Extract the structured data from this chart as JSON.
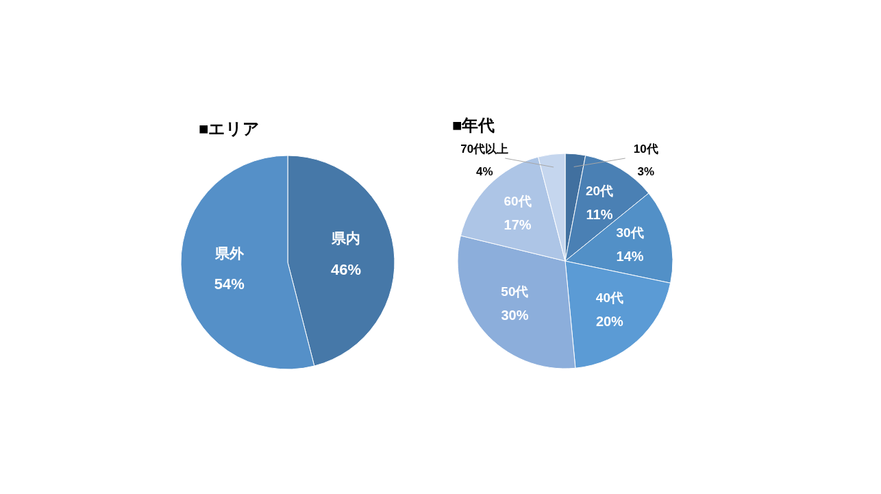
{
  "chart_data": [
    {
      "type": "pie",
      "title": "■エリア",
      "categories": [
        "県内",
        "県外"
      ],
      "values": [
        46,
        54
      ],
      "colors": [
        "#4678a8",
        "#5590c8"
      ],
      "value_labels": [
        "46%",
        "54%"
      ]
    },
    {
      "type": "pie",
      "title": "■年代",
      "categories": [
        "10代",
        "20代",
        "30代",
        "40代",
        "50代",
        "60代",
        "70代以上"
      ],
      "values": [
        3,
        11,
        14,
        20,
        30,
        17,
        4
      ],
      "colors": [
        "#41709f",
        "#4a80b4",
        "#5290c7",
        "#5b9bd5",
        "#8caedb",
        "#adc5e6",
        "#c5d6ee"
      ],
      "value_labels": [
        "3%",
        "11%",
        "14%",
        "20%",
        "30%",
        "17%",
        "4%"
      ]
    }
  ]
}
